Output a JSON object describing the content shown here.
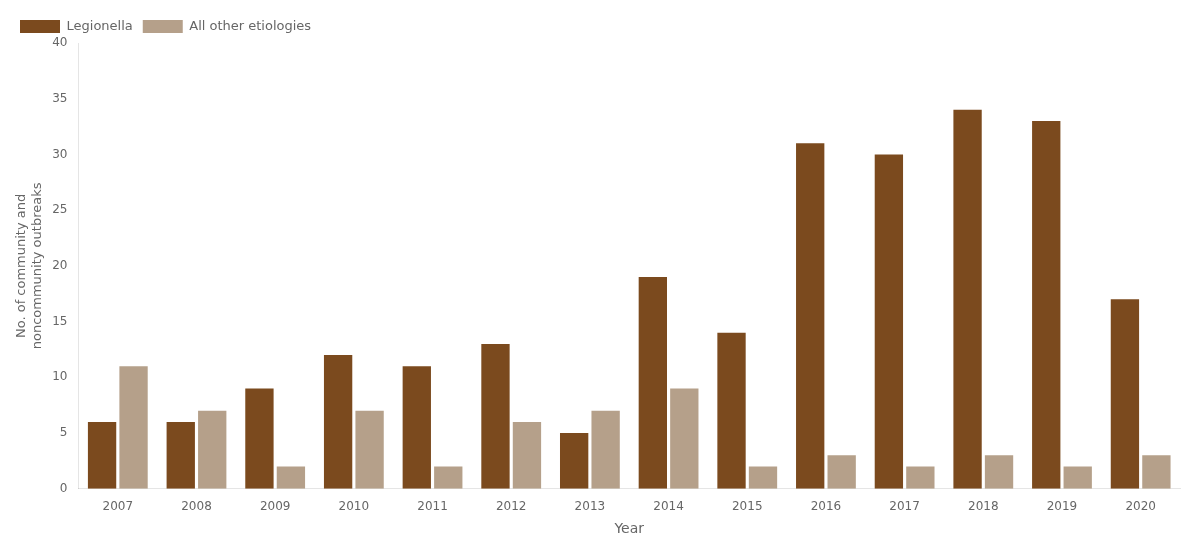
{
  "chart_data": {
    "type": "bar",
    "categories": [
      "2007",
      "2008",
      "2009",
      "2010",
      "2011",
      "2012",
      "2013",
      "2014",
      "2015",
      "2016",
      "2017",
      "2018",
      "2019",
      "2020"
    ],
    "series": [
      {
        "name": "Legionella",
        "color": "#7B4A1E",
        "values": [
          6,
          6,
          9,
          12,
          11,
          13,
          5,
          19,
          14,
          31,
          30,
          34,
          33,
          17
        ]
      },
      {
        "name": "All other etiologies",
        "color": "#B5A08A",
        "values": [
          11,
          7,
          2,
          7,
          2,
          6,
          7,
          9,
          2,
          3,
          2,
          3,
          2,
          3
        ]
      }
    ],
    "xlabel": "Year",
    "ylabel": "No. of community and\nnoncommunity outbreaks",
    "ylim": [
      0,
      40
    ],
    "yticks": [
      0,
      5,
      10,
      15,
      20,
      25,
      30,
      35,
      40
    ],
    "grid": false,
    "legend": "upper left"
  }
}
